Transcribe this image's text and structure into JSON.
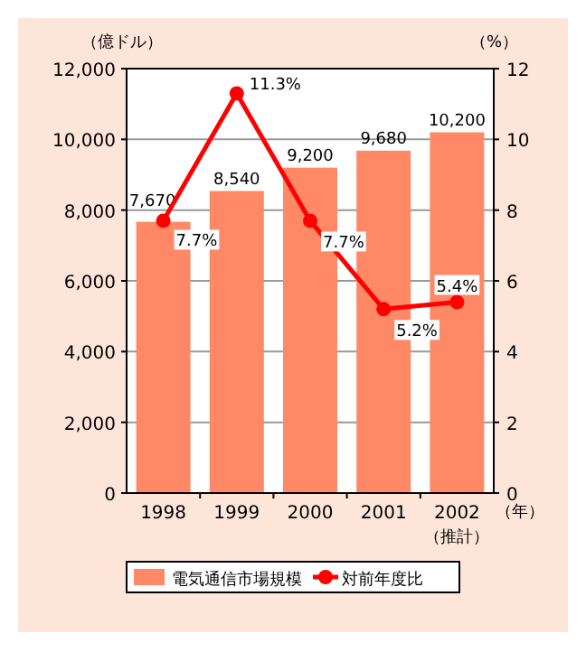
{
  "chart_data": {
    "type": "bar",
    "categories": [
      "1998",
      "1999",
      "2000",
      "2001",
      "2002（推計）"
    ],
    "xlabel": "（年）",
    "ylabel": "（億ドル）",
    "y2label": "（%）",
    "series": [
      {
        "name": "電気通信市場規模",
        "color": "#ff8866",
        "values": [
          7670,
          8540,
          9200,
          9680,
          10200
        ],
        "value_labels": [
          "7,670",
          "8,540",
          "9,200",
          "9,680",
          "10,200"
        ]
      },
      {
        "name": "対前年度比",
        "type": "line",
        "axis": "y2",
        "color": "#ff0000",
        "marker": "circle",
        "values": [
          7.7,
          11.3,
          7.7,
          5.2,
          5.4
        ],
        "value_labels": [
          "7.7%",
          "11.3%",
          "7.7%",
          "5.2%",
          "5.4%"
        ]
      }
    ],
    "ylim": [
      0,
      12000
    ],
    "yticks": [
      {
        "value": 0,
        "label": "0"
      },
      {
        "value": 2000,
        "label": "2,000"
      },
      {
        "value": 4000,
        "label": "4,000"
      },
      {
        "value": 6000,
        "label": "6,000"
      },
      {
        "value": 8000,
        "label": "8,000"
      },
      {
        "value": 10000,
        "label": "10,000"
      },
      {
        "value": 12000,
        "label": "12,000"
      }
    ],
    "y2lim": [
      0,
      12
    ],
    "y2ticks": [
      0,
      2,
      4,
      6,
      8,
      10,
      12
    ],
    "grid": "y",
    "legend": "bottom"
  }
}
